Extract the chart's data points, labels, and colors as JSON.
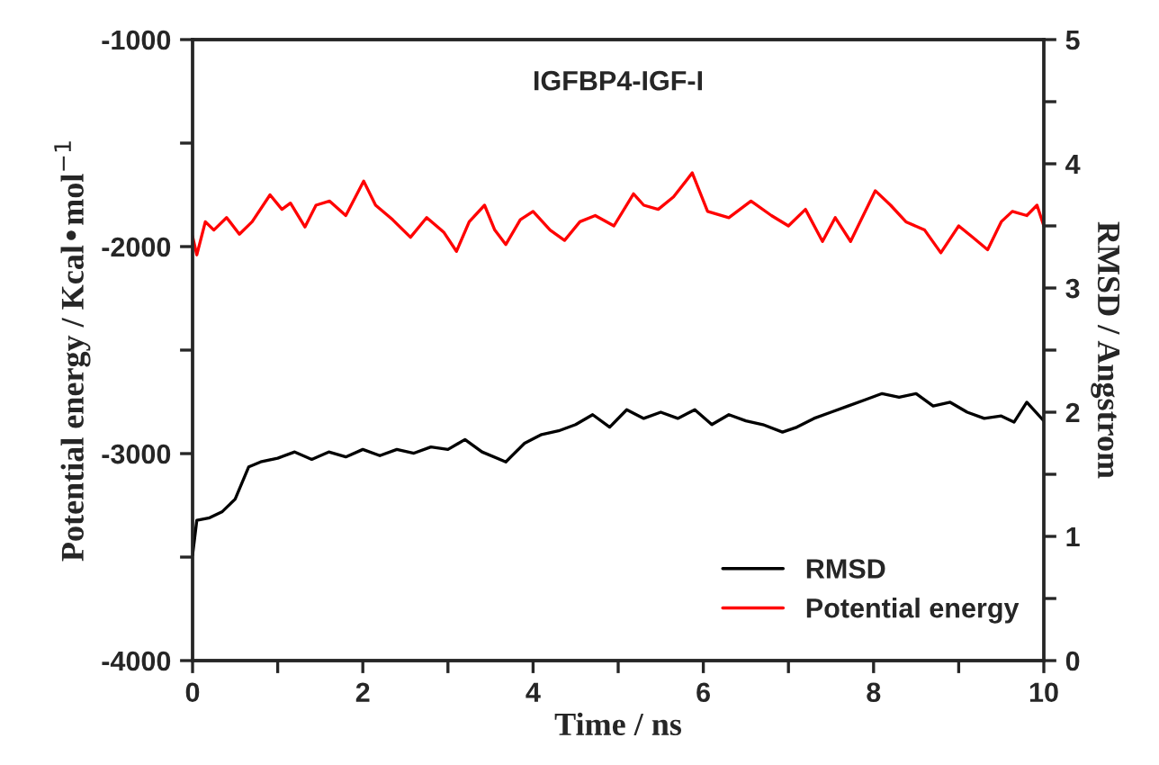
{
  "chart_data": {
    "type": "line",
    "title": "IGFBP4-IGF-I",
    "xlabel": "Time / ns",
    "ylabel": "Potential energy / Kcal•mol$^{−1}$",
    "y2label": "RMSD / Angstrom",
    "xlim": [
      0,
      10
    ],
    "xticks": [
      0,
      {
        "value": 1,
        "label": null
      },
      2,
      {
        "value": 3,
        "label": null
      },
      4,
      {
        "value": 5,
        "label": null
      },
      6,
      {
        "value": 7,
        "label": null
      },
      8,
      {
        "value": 9,
        "label": null
      },
      10
    ],
    "ylim": [
      -4000,
      -1000
    ],
    "yticks": [
      -4000,
      {
        "value": -3500,
        "label": null
      },
      -3000,
      {
        "value": -2500,
        "label": null
      },
      -2000,
      {
        "value": -1500,
        "label": null
      },
      -1000
    ],
    "y2lim": [
      0,
      5
    ],
    "y2ticks": [
      0,
      {
        "value": 0.5,
        "label": null
      },
      1,
      {
        "value": 1.5,
        "label": null
      },
      2,
      {
        "value": 2.5,
        "label": null
      },
      3,
      {
        "value": 3.5,
        "label": null
      },
      4,
      {
        "value": 4.5,
        "label": null
      },
      5
    ],
    "legend": "bottom right",
    "grid": false,
    "series": [
      {
        "name": "RMSD",
        "color": "#000000",
        "axis": "y2",
        "x": [
          0,
          0.05,
          0.2,
          0.35,
          0.5,
          0.66,
          0.8,
          1.0,
          1.2,
          1.4,
          1.6,
          1.8,
          2.0,
          2.2,
          2.4,
          2.6,
          2.8,
          3.0,
          3.2,
          3.4,
          3.68,
          3.9,
          4.1,
          4.3,
          4.5,
          4.7,
          4.9,
          5.1,
          5.3,
          5.5,
          5.7,
          5.9,
          6.1,
          6.3,
          6.5,
          6.7,
          6.93,
          7.1,
          7.3,
          7.5,
          7.7,
          7.9,
          8.1,
          8.3,
          8.5,
          8.7,
          8.9,
          9.1,
          9.3,
          9.5,
          9.65,
          9.8,
          10
        ],
        "values": [
          0.85,
          1.13,
          1.15,
          1.2,
          1.3,
          1.56,
          1.6,
          1.63,
          1.68,
          1.62,
          1.68,
          1.64,
          1.7,
          1.65,
          1.7,
          1.67,
          1.72,
          1.7,
          1.78,
          1.68,
          1.6,
          1.75,
          1.82,
          1.85,
          1.9,
          1.98,
          1.88,
          2.02,
          1.95,
          2.0,
          1.95,
          2.02,
          1.9,
          1.98,
          1.93,
          1.9,
          1.84,
          1.88,
          1.95,
          2.0,
          2.05,
          2.1,
          2.15,
          2.12,
          2.15,
          2.05,
          2.08,
          2.0,
          1.95,
          1.97,
          1.92,
          2.08,
          1.93
        ]
      },
      {
        "name": "Potential energy",
        "color": "#ff0000",
        "axis": "y",
        "x": [
          0,
          0.05,
          0.15,
          0.25,
          0.4,
          0.55,
          0.7,
          0.91,
          1.05,
          1.15,
          1.32,
          1.45,
          1.61,
          1.8,
          2.01,
          2.15,
          2.35,
          2.56,
          2.75,
          2.95,
          3.1,
          3.25,
          3.43,
          3.55,
          3.68,
          3.85,
          4.0,
          4.2,
          4.37,
          4.55,
          4.73,
          4.95,
          5.18,
          5.3,
          5.47,
          5.65,
          5.87,
          6.05,
          6.3,
          6.56,
          6.8,
          7.0,
          7.2,
          7.4,
          7.55,
          7.73,
          8.02,
          8.2,
          8.38,
          8.6,
          8.79,
          9.0,
          9.15,
          9.34,
          9.5,
          9.63,
          9.8,
          9.92,
          10
        ],
        "values": [
          -1950,
          -2040,
          -1880,
          -1920,
          -1860,
          -1940,
          -1880,
          -1750,
          -1820,
          -1790,
          -1905,
          -1800,
          -1780,
          -1850,
          -1684,
          -1800,
          -1870,
          -1955,
          -1860,
          -1930,
          -2023,
          -1880,
          -1800,
          -1920,
          -1990,
          -1870,
          -1830,
          -1920,
          -1970,
          -1880,
          -1850,
          -1900,
          -1745,
          -1800,
          -1820,
          -1760,
          -1644,
          -1830,
          -1860,
          -1780,
          -1850,
          -1900,
          -1820,
          -1975,
          -1860,
          -1975,
          -1730,
          -1800,
          -1880,
          -1920,
          -2030,
          -1900,
          -1950,
          -2015,
          -1880,
          -1830,
          -1850,
          -1800,
          -1900
        ]
      }
    ]
  }
}
